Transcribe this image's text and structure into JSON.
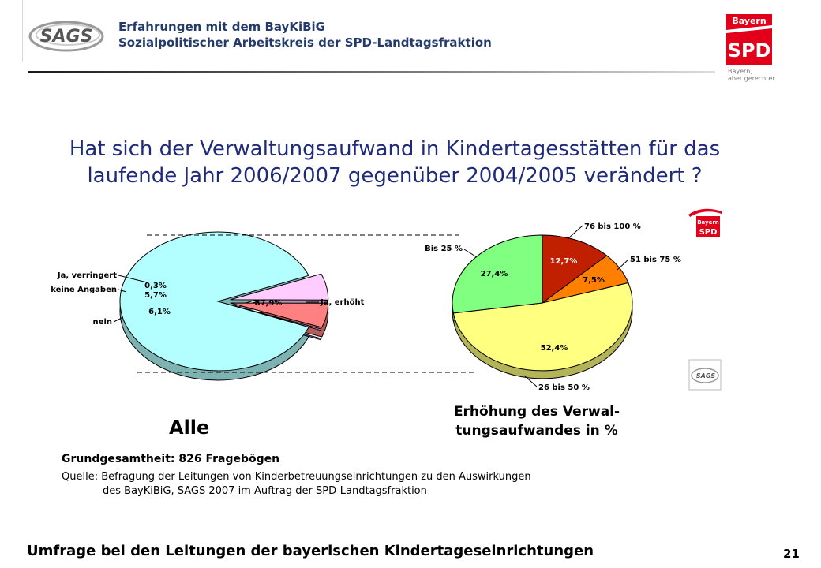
{
  "header": {
    "title_line1": "Erfahrungen mit dem BayKiBiG",
    "title_line2": "Sozialpolitischer Arbeitskreis der SPD-Landtagsfraktion",
    "left_logo_text": "SAGS",
    "right_logo_top": "Bayern",
    "right_logo_main": "SPD",
    "right_logo_tagline1": "Bayern,",
    "right_logo_tagline2": "aber gerechter."
  },
  "question": {
    "line1": "Hat sich der Verwaltungsaufwand in Kindertagesstätten für das",
    "line2": "laufende Jahr 2006/2007 gegenüber 2004/2005  verändert ?"
  },
  "side_logos": {
    "spd_top": "Bayern",
    "spd_main": "SPD",
    "sags": "SAGS"
  },
  "chart_data": [
    {
      "type": "pie",
      "title": "Alle",
      "slices": [
        {
          "label": "Ja, erhöht",
          "value": 87.9,
          "value_label": "87,9%",
          "color": "#b3ffff"
        },
        {
          "label": "Ja, verringert",
          "value": 0.3,
          "value_label": "0,3%",
          "color": "#d9b3ff"
        },
        {
          "label": "keine Angaben",
          "value": 5.7,
          "value_label": "5,7%",
          "color": "#ff8080"
        },
        {
          "label": "nein",
          "value": 6.1,
          "value_label": "6,1%",
          "color": "#ffccff"
        }
      ]
    },
    {
      "type": "pie",
      "title": "Erhöhung des Verwaltungsaufwandes in %",
      "title_line1": "Erhöhung des Verwal-",
      "title_line2": "tungsaufwandes in %",
      "slices": [
        {
          "label": "76 bis 100 %",
          "value": 12.7,
          "value_label": "12,7%",
          "color": "#c01f00"
        },
        {
          "label": "51 bis 75 %",
          "value": 7.5,
          "value_label": "7,5%",
          "color": "#ff8000"
        },
        {
          "label": "26 bis 50 %",
          "value": 52.4,
          "value_label": "52,4%",
          "color": "#ffff80"
        },
        {
          "label": "Bis 25 %",
          "value": 27.4,
          "value_label": "27,4%",
          "color": "#80ff80"
        }
      ]
    }
  ],
  "base": {
    "label": "Grundgesamtheit: 826 Fragebögen"
  },
  "source": {
    "line1": "Quelle: Befragung der Leitungen von Kinderbetreuungseinrichtungen zu den Auswirkungen",
    "line2": "des BayKiBiG, SAGS 2007 im Auftrag der SPD-Landtagsfraktion"
  },
  "footer": {
    "text": "Umfrage bei den Leitungen der bayerischen Kindertageseinrichtungen",
    "page_number": "21"
  }
}
